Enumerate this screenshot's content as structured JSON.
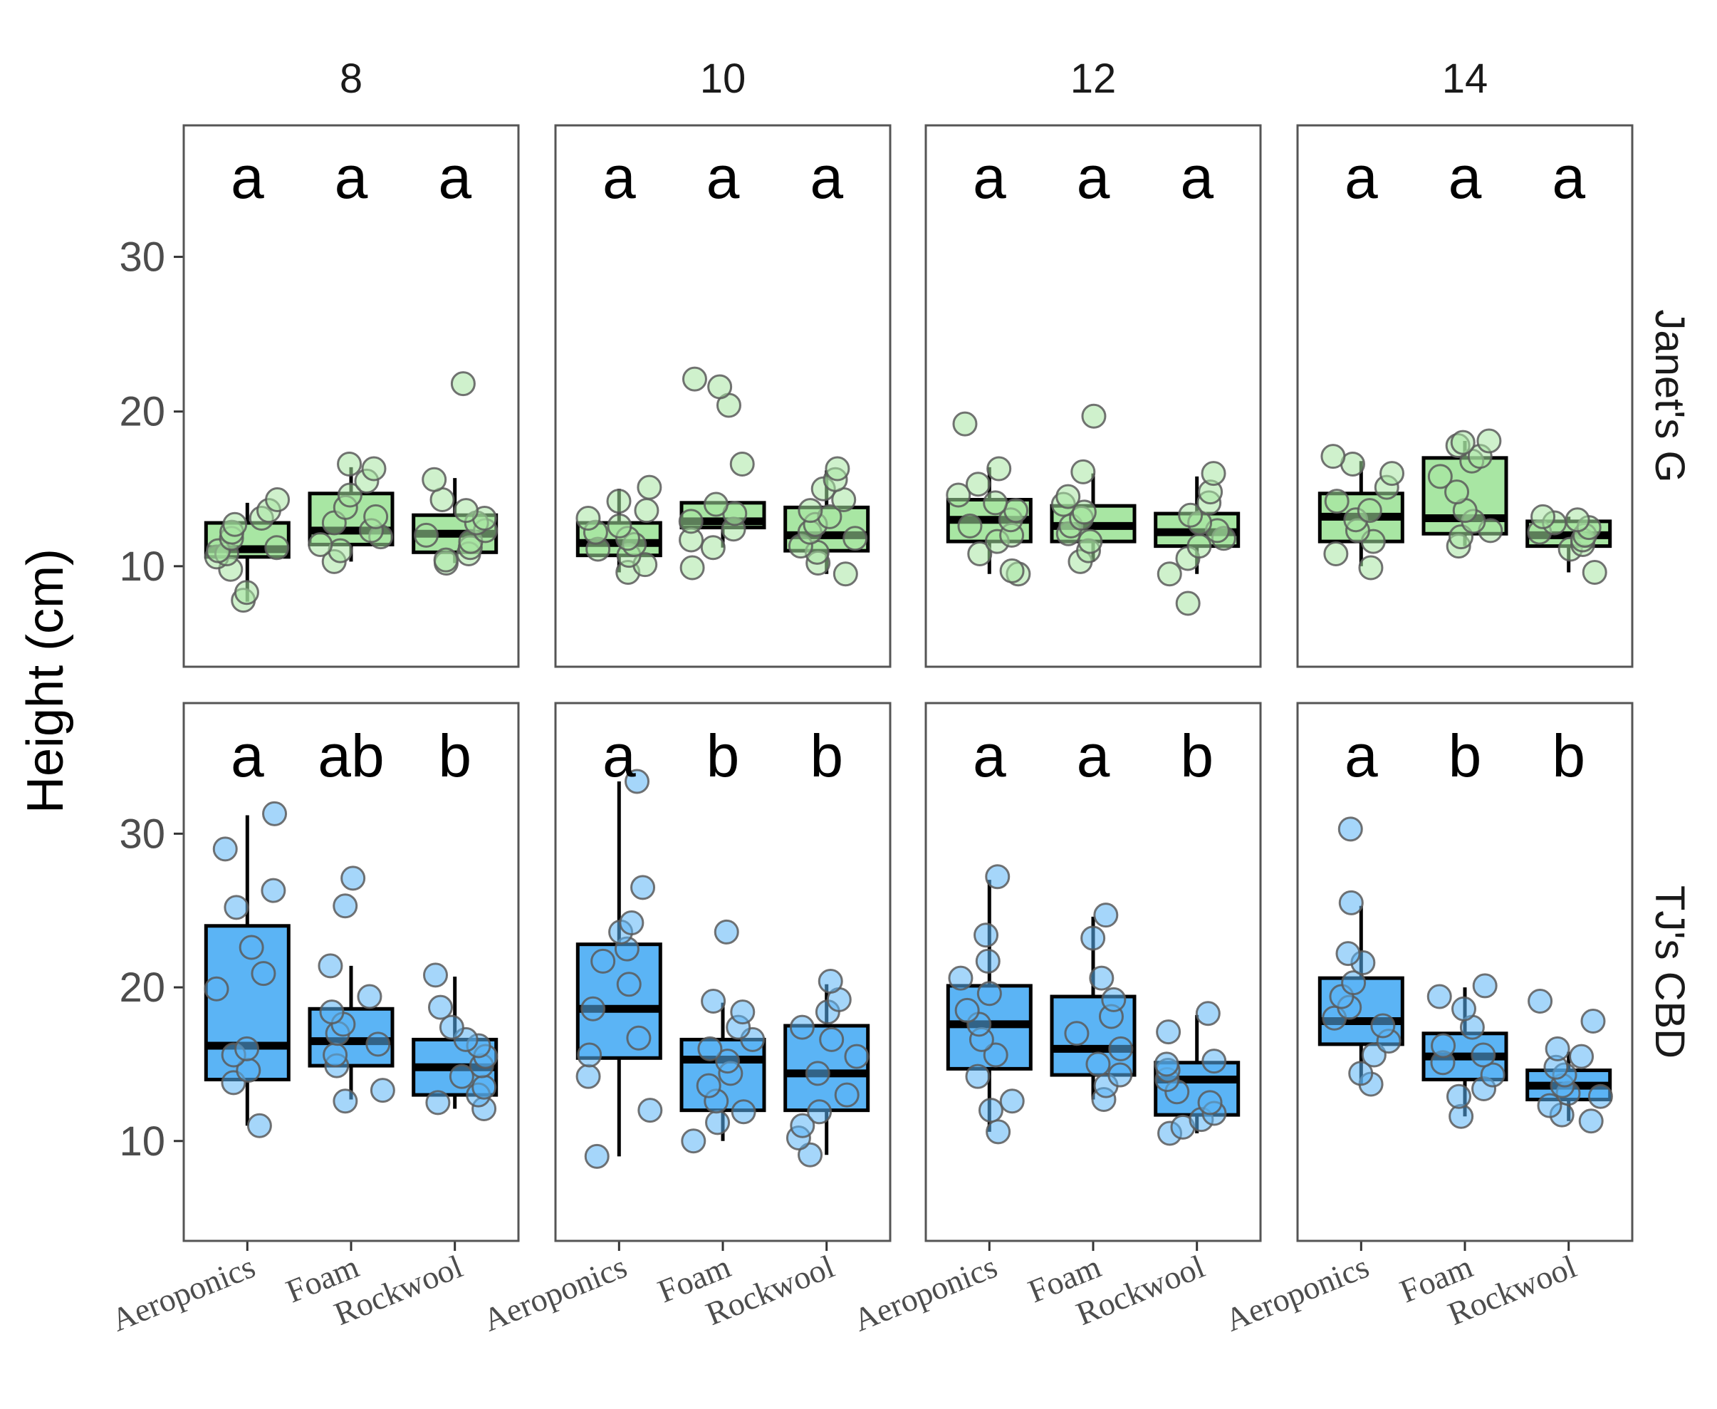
{
  "chart_data": {
    "type": "box",
    "ylabel": "Height (cm)",
    "xlabel": "",
    "ylim": [
      3.5,
      38.5
    ],
    "yticks": [
      10,
      20,
      30
    ],
    "categories": [
      "Aeroponics",
      "Foam",
      "Rockwool"
    ],
    "facet_columns": [
      "8",
      "10",
      "12",
      "14"
    ],
    "facet_rows": [
      "Janet's G",
      "TJ's CBD"
    ],
    "colors": {
      "Janet's G": "#a8e6a3",
      "TJ's CBD": "#5bb4f5"
    },
    "panels": [
      {
        "row": "Janet's G",
        "col": "8",
        "letters": [
          "a",
          "a",
          "a"
        ],
        "boxes": [
          {
            "min": 7.7,
            "q1": 10.6,
            "median": 11.1,
            "q3": 12.8,
            "max": 14.1,
            "points": [
              7.8,
              8.3,
              9.8,
              10.6,
              10.8,
              11.0,
              11.2,
              11.8,
              12.2,
              12.7,
              13.1,
              13.6,
              14.3
            ]
          },
          {
            "min": 10.3,
            "q1": 11.4,
            "median": 12.3,
            "q3": 14.7,
            "max": 16.4,
            "points": [
              10.3,
              11.0,
              11.4,
              11.9,
              12.3,
              12.8,
              13.2,
              13.8,
              14.6,
              15.5,
              16.3,
              16.6
            ]
          },
          {
            "min": 10.2,
            "q1": 10.9,
            "median": 12.1,
            "q3": 13.3,
            "max": 15.7,
            "points": [
              10.2,
              10.4,
              10.8,
              11.2,
              11.6,
              12.0,
              12.3,
              12.8,
              13.1,
              13.6,
              14.3,
              15.6,
              21.8
            ]
          }
        ]
      },
      {
        "row": "Janet's G",
        "col": "10",
        "letters": [
          "a",
          "a",
          "a"
        ],
        "boxes": [
          {
            "min": 9.6,
            "q1": 10.7,
            "median": 11.5,
            "q3": 12.8,
            "max": 15.0,
            "points": [
              9.6,
              10.1,
              10.7,
              11.1,
              11.4,
              11.8,
              12.2,
              12.6,
              13.1,
              13.6,
              14.2,
              15.1
            ]
          },
          {
            "min": 11.2,
            "q1": 12.5,
            "median": 12.9,
            "q3": 14.1,
            "max": 14.1,
            "points": [
              9.9,
              11.2,
              11.7,
              12.4,
              12.9,
              13.4,
              14.0,
              16.6,
              20.4,
              21.6,
              22.1
            ]
          },
          {
            "min": 9.5,
            "q1": 11.0,
            "median": 12.0,
            "q3": 13.8,
            "max": 16.2,
            "points": [
              9.5,
              10.2,
              10.9,
              11.3,
              11.8,
              12.2,
              12.7,
              13.2,
              13.6,
              14.3,
              15.0,
              15.6,
              16.3
            ]
          }
        ]
      },
      {
        "row": "Janet's G",
        "col": "12",
        "letters": [
          "a",
          "a",
          "a"
        ],
        "boxes": [
          {
            "min": 9.5,
            "q1": 11.6,
            "median": 13.0,
            "q3": 14.3,
            "max": 16.4,
            "points": [
              9.5,
              9.7,
              10.8,
              11.6,
              12.0,
              12.6,
              13.0,
              13.6,
              14.1,
              14.6,
              15.3,
              16.3,
              19.2
            ]
          },
          {
            "min": 10.3,
            "q1": 11.6,
            "median": 12.6,
            "q3": 13.9,
            "max": 16.0,
            "points": [
              10.3,
              11.0,
              11.6,
              12.1,
              12.6,
              13.1,
              13.5,
              14.0,
              14.5,
              16.1,
              19.7
            ]
          },
          {
            "min": 9.5,
            "q1": 11.3,
            "median": 12.2,
            "q3": 13.4,
            "max": 15.8,
            "points": [
              7.6,
              9.5,
              10.5,
              11.3,
              11.8,
              12.3,
              12.8,
              13.3,
              14.1,
              14.8,
              16.0
            ]
          }
        ]
      },
      {
        "row": "Janet's G",
        "col": "14",
        "letters": [
          "a",
          "a",
          "a"
        ],
        "boxes": [
          {
            "min": 10.0,
            "q1": 11.6,
            "median": 13.2,
            "q3": 14.7,
            "max": 16.8,
            "points": [
              9.9,
              10.8,
              11.6,
              12.3,
              13.0,
              13.6,
              14.2,
              15.1,
              16.0,
              16.6,
              17.1
            ]
          },
          {
            "min": 11.3,
            "q1": 12.1,
            "median": 13.1,
            "q3": 17.0,
            "max": 18.1,
            "points": [
              11.3,
              11.9,
              12.3,
              12.9,
              13.6,
              14.8,
              15.8,
              16.8,
              17.1,
              17.8,
              18.0,
              18.1
            ]
          },
          {
            "min": 9.6,
            "q1": 11.3,
            "median": 12.0,
            "q3": 12.9,
            "max": 13.2,
            "points": [
              9.6,
              11.1,
              11.4,
              11.7,
              12.0,
              12.2,
              12.5,
              12.8,
              13.0,
              13.2
            ]
          }
        ]
      },
      {
        "row": "TJ's CBD",
        "col": "8",
        "letters": [
          "a",
          "ab",
          "b"
        ],
        "boxes": [
          {
            "min": 11.0,
            "q1": 14.0,
            "median": 16.2,
            "q3": 24.0,
            "max": 31.2,
            "points": [
              11.0,
              13.8,
              14.6,
              15.6,
              16.0,
              19.9,
              20.9,
              22.6,
              25.2,
              26.3,
              29.0,
              31.3
            ]
          },
          {
            "min": 12.7,
            "q1": 14.9,
            "median": 16.5,
            "q3": 18.6,
            "max": 21.4,
            "points": [
              12.6,
              13.3,
              14.9,
              15.6,
              16.3,
              17.0,
              17.6,
              18.4,
              19.4,
              21.4,
              25.3,
              27.1
            ]
          },
          {
            "min": 12.1,
            "q1": 13.0,
            "median": 14.8,
            "q3": 16.6,
            "max": 20.7,
            "points": [
              12.1,
              12.5,
              13.0,
              13.5,
              14.2,
              14.9,
              15.5,
              16.2,
              16.6,
              17.4,
              18.7,
              20.8
            ]
          }
        ]
      },
      {
        "row": "TJ's CBD",
        "col": "10",
        "letters": [
          "a",
          "b",
          "b"
        ],
        "boxes": [
          {
            "min": 9.0,
            "q1": 15.4,
            "median": 18.6,
            "q3": 22.8,
            "max": 33.4,
            "points": [
              9.0,
              12.0,
              14.2,
              15.6,
              16.7,
              18.6,
              20.2,
              21.7,
              22.5,
              23.6,
              24.2,
              26.5,
              33.4
            ]
          },
          {
            "min": 10.0,
            "q1": 12.0,
            "median": 15.3,
            "q3": 16.6,
            "max": 19.0,
            "points": [
              10.0,
              11.2,
              11.9,
              12.6,
              13.6,
              14.4,
              15.2,
              16.0,
              16.6,
              17.4,
              18.4,
              19.1,
              23.6
            ]
          },
          {
            "min": 9.1,
            "q1": 12.0,
            "median": 14.4,
            "q3": 17.5,
            "max": 20.2,
            "points": [
              9.1,
              10.2,
              11.0,
              11.9,
              13.0,
              14.4,
              15.5,
              16.6,
              17.4,
              18.4,
              19.2,
              20.4
            ]
          }
        ]
      },
      {
        "row": "TJ's CBD",
        "col": "12",
        "letters": [
          "a",
          "a",
          "b"
        ],
        "boxes": [
          {
            "min": 10.6,
            "q1": 14.7,
            "median": 17.6,
            "q3": 20.1,
            "max": 27.0,
            "points": [
              10.6,
              12.0,
              12.6,
              14.2,
              15.6,
              16.6,
              17.6,
              18.5,
              19.6,
              20.6,
              21.7,
              23.4,
              27.2
            ]
          },
          {
            "min": 12.7,
            "q1": 14.3,
            "median": 16.0,
            "q3": 19.4,
            "max": 24.6,
            "points": [
              12.7,
              13.6,
              14.3,
              15.0,
              16.0,
              17.0,
              18.1,
              19.2,
              20.6,
              23.2,
              24.7
            ]
          },
          {
            "min": 10.5,
            "q1": 11.7,
            "median": 14.0,
            "q3": 15.1,
            "max": 18.2,
            "points": [
              10.5,
              10.9,
              11.4,
              11.8,
              12.5,
              13.2,
              14.0,
              14.6,
              15.0,
              15.2,
              17.1,
              18.3
            ]
          }
        ]
      },
      {
        "row": "TJ's CBD",
        "col": "14",
        "letters": [
          "a",
          "b",
          "b"
        ],
        "boxes": [
          {
            "min": 13.7,
            "q1": 16.3,
            "median": 17.8,
            "q3": 20.6,
            "max": 25.3,
            "points": [
              13.7,
              14.4,
              15.6,
              16.5,
              17.5,
              18.0,
              18.7,
              19.4,
              20.3,
              21.6,
              22.2,
              25.5,
              30.3
            ]
          },
          {
            "min": 11.6,
            "q1": 14.0,
            "median": 15.5,
            "q3": 17.0,
            "max": 20.0,
            "points": [
              11.6,
              12.9,
              13.4,
              14.3,
              15.1,
              15.6,
              16.2,
              17.4,
              18.6,
              19.4,
              20.1
            ]
          },
          {
            "min": 11.3,
            "q1": 12.7,
            "median": 13.6,
            "q3": 14.6,
            "max": 15.8,
            "points": [
              11.3,
              11.7,
              12.3,
              12.9,
              13.1,
              13.6,
              14.3,
              14.8,
              15.5,
              16.0,
              17.8,
              19.1
            ]
          }
        ]
      }
    ]
  }
}
